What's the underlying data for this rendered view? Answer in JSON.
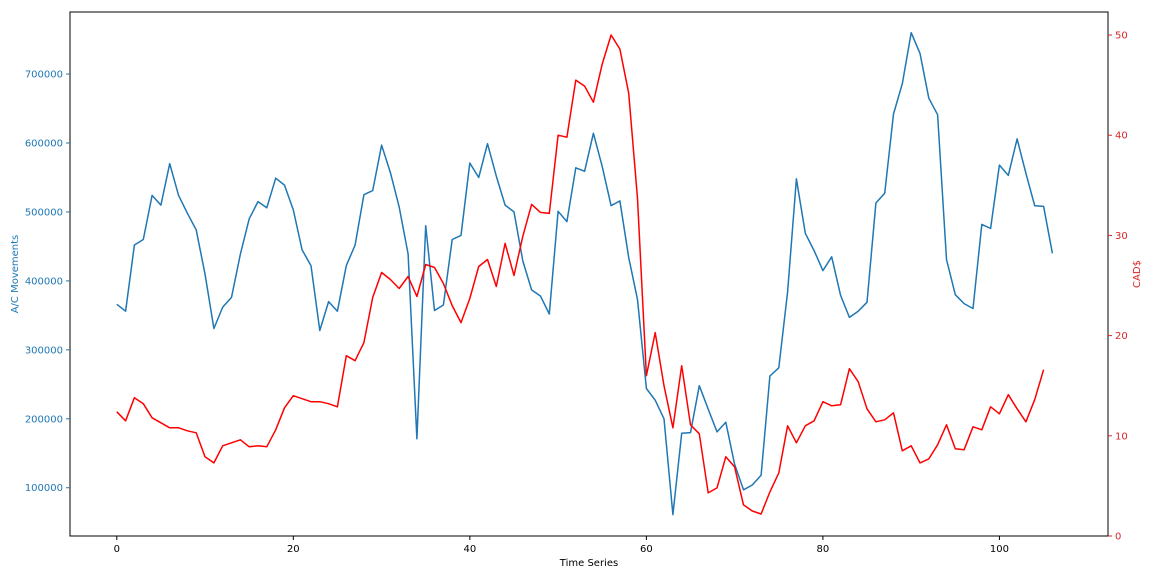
{
  "chart_data": {
    "type": "line",
    "title": "",
    "xlabel": "Time Series",
    "ylabel_left": "A/C Movements",
    "ylabel_right": "CAD$",
    "xlim": [
      -5.3,
      112.3
    ],
    "ylim_left": [
      30000,
      790000
    ],
    "ylim_right": [
      0,
      52.3
    ],
    "x_ticks": [
      0,
      20,
      40,
      60,
      80,
      100
    ],
    "y_left_ticks": [
      100000,
      200000,
      300000,
      400000,
      500000,
      600000,
      700000
    ],
    "y_right_ticks": [
      0,
      10,
      20,
      30,
      40,
      50
    ],
    "grid": false,
    "left_axis_color": "#1f77b4",
    "right_axis_color": "#d62728",
    "series": [
      {
        "axis": "left",
        "color": "#1f77b4",
        "x_start": 0,
        "values": [
          366000,
          356000,
          452000,
          460000,
          524000,
          510000,
          570000,
          524000,
          498000,
          474000,
          410000,
          331000,
          362000,
          376000,
          439000,
          490000,
          515000,
          506000,
          549000,
          539000,
          503000,
          445000,
          422000,
          328000,
          370000,
          356000,
          422000,
          452000,
          525000,
          531000,
          597000,
          557000,
          507000,
          439000,
          171000,
          480000,
          357000,
          365000,
          460000,
          466000,
          571000,
          550000,
          599000,
          552000,
          510000,
          500000,
          429000,
          387000,
          378000,
          352000,
          501000,
          486000,
          564000,
          559000,
          614000,
          566000,
          509000,
          516000,
          434000,
          373000,
          244000,
          227000,
          200000,
          61000,
          179000,
          180000,
          248000,
          214000,
          181000,
          195000,
          134000,
          97000,
          104000,
          118000,
          262000,
          274000,
          384000,
          548000,
          469000,
          444000,
          415000,
          435000,
          379000,
          347000,
          356000,
          369000,
          513000,
          527000,
          642000,
          686000,
          760000,
          730000,
          665000,
          641000,
          431000,
          380000,
          367000,
          360000,
          482000,
          476000,
          568000,
          553000,
          606000,
          556000,
          509000,
          508000,
          440000
        ]
      },
      {
        "axis": "right",
        "color": "#ff0000",
        "x_start": 0,
        "values": [
          12.4,
          11.5,
          13.8,
          13.2,
          11.8,
          11.3,
          10.8,
          10.8,
          10.5,
          10.3,
          7.9,
          7.3,
          9.0,
          9.3,
          9.6,
          8.9,
          9.0,
          8.9,
          10.6,
          12.8,
          14.0,
          13.7,
          13.4,
          13.4,
          13.2,
          12.9,
          18.0,
          17.5,
          19.3,
          23.8,
          26.3,
          25.6,
          24.7,
          25.9,
          23.9,
          27.1,
          26.8,
          25.2,
          23.0,
          21.3,
          23.7,
          26.9,
          27.6,
          24.9,
          29.2,
          26.0,
          29.9,
          33.1,
          32.3,
          32.2,
          40.0,
          39.8,
          45.5,
          44.9,
          43.3,
          47.1,
          50.0,
          48.6,
          44.2,
          33.7,
          16.0,
          20.3,
          15.0,
          10.8,
          17.0,
          11.1,
          10.2,
          4.3,
          4.8,
          7.9,
          6.9,
          3.1,
          2.5,
          2.2,
          4.4,
          6.3,
          11.0,
          9.3,
          11.0,
          11.5,
          13.4,
          13.0,
          13.1,
          16.7,
          15.4,
          12.7,
          11.4,
          11.6,
          12.3,
          8.5,
          9.0,
          7.3,
          7.7,
          9.1,
          11.1,
          8.7,
          8.6,
          10.9,
          10.6,
          12.9,
          12.2,
          14.1,
          12.7,
          11.4,
          13.6,
          16.6
        ]
      }
    ]
  }
}
